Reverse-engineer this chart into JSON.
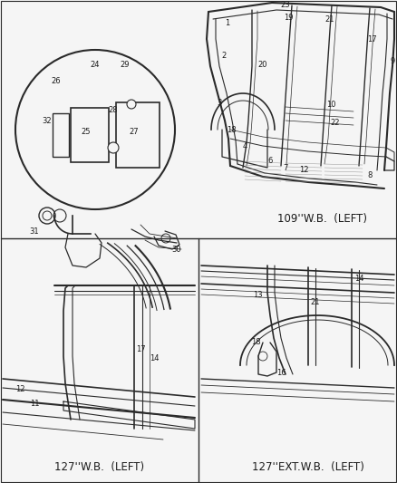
{
  "background_color": "#f5f5f5",
  "line_color": "#2a2a2a",
  "text_color": "#1a1a1a",
  "fig_width": 4.38,
  "fig_height": 5.33,
  "dpi": 100,
  "label_fs": 6.0,
  "section_label_fs": 8.5,
  "divider_color": "#333333",
  "labels": {
    "sec_109": "109''W.B.  (LEFT)",
    "sec_127wb": "127''W.B.  (LEFT)",
    "sec_127ext": "127''EXT.W.B.  (LEFT)"
  }
}
